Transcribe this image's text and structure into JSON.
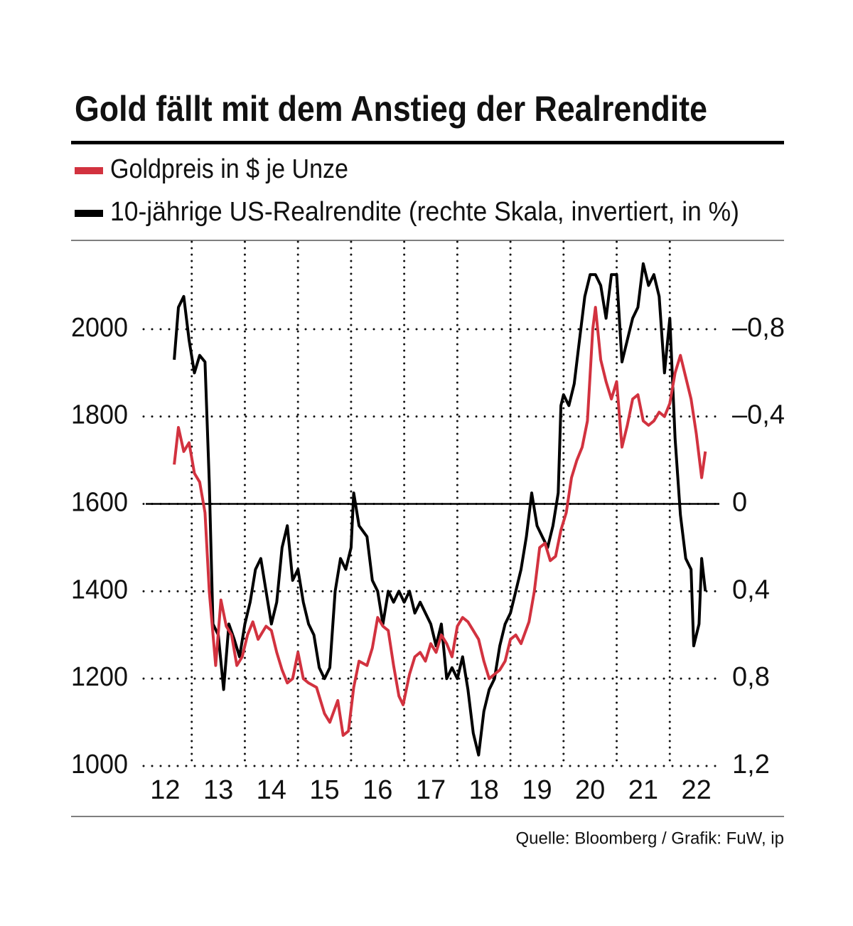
{
  "chart_data": {
    "type": "line",
    "title": "Gold fällt mit dem Anstieg der Realrendite",
    "source": "Quelle: Bloomberg / Grafik: FuW, ip",
    "xlim": [
      12,
      23
    ],
    "xticks": [
      {
        "value": 12.5,
        "label": "12"
      },
      {
        "value": 13.5,
        "label": "13"
      },
      {
        "value": 14.5,
        "label": "14"
      },
      {
        "value": 15.5,
        "label": "15"
      },
      {
        "value": 16.5,
        "label": "16"
      },
      {
        "value": 17.5,
        "label": "17"
      },
      {
        "value": 18.5,
        "label": "18"
      },
      {
        "value": 19.5,
        "label": "19"
      },
      {
        "value": 20.5,
        "label": "20"
      },
      {
        "value": 21.5,
        "label": "21"
      },
      {
        "value": 22.5,
        "label": "22"
      }
    ],
    "xgrid": [
      13,
      14,
      15,
      16,
      17,
      18,
      19,
      20,
      21,
      22
    ],
    "ylim": [
      1000,
      2200
    ],
    "yticks": [
      1000,
      1200,
      1400,
      1600,
      1800,
      2000
    ],
    "y2lim": [
      1.2,
      -1.2
    ],
    "y2ticks": [
      {
        "value": 1.2,
        "label": "1,2"
      },
      {
        "value": 0.8,
        "label": "0,8"
      },
      {
        "value": 0.4,
        "label": "0,4"
      },
      0,
      {
        "value": -0.4,
        "label": "–0,4"
      },
      {
        "value": -0.8,
        "label": "–0,8"
      }
    ],
    "grid": true,
    "series": [
      {
        "name": "Goldpreis in $ je Unze",
        "color": "#d2323f",
        "x": [
          12.67,
          12.75,
          12.85,
          12.95,
          13.05,
          13.15,
          13.25,
          13.33,
          13.45,
          13.55,
          13.65,
          13.75,
          13.85,
          13.95,
          14.05,
          14.15,
          14.25,
          14.4,
          14.5,
          14.6,
          14.7,
          14.8,
          14.9,
          15.0,
          15.1,
          15.2,
          15.35,
          15.5,
          15.6,
          15.75,
          15.85,
          15.95,
          16.05,
          16.15,
          16.3,
          16.4,
          16.5,
          16.6,
          16.7,
          16.8,
          16.9,
          16.98,
          17.1,
          17.2,
          17.3,
          17.4,
          17.5,
          17.6,
          17.7,
          17.8,
          17.9,
          18.0,
          18.1,
          18.2,
          18.3,
          18.4,
          18.5,
          18.6,
          18.7,
          18.8,
          18.9,
          19.0,
          19.1,
          19.2,
          19.35,
          19.45,
          19.55,
          19.65,
          19.75,
          19.85,
          19.95,
          20.05,
          20.15,
          20.25,
          20.35,
          20.45,
          20.55,
          20.6,
          20.7,
          20.8,
          20.9,
          21.0,
          21.1,
          21.2,
          21.3,
          21.4,
          21.5,
          21.6,
          21.7,
          21.8,
          21.9,
          22.0,
          22.1,
          22.2,
          22.3,
          22.4,
          22.5,
          22.6,
          22.67
        ],
        "values": [
          1690,
          1775,
          1720,
          1740,
          1670,
          1650,
          1580,
          1400,
          1230,
          1380,
          1320,
          1300,
          1230,
          1250,
          1300,
          1330,
          1290,
          1320,
          1310,
          1260,
          1220,
          1190,
          1200,
          1260,
          1200,
          1190,
          1180,
          1120,
          1100,
          1150,
          1070,
          1080,
          1180,
          1240,
          1230,
          1270,
          1340,
          1320,
          1310,
          1230,
          1160,
          1140,
          1210,
          1250,
          1260,
          1240,
          1280,
          1260,
          1300,
          1280,
          1250,
          1320,
          1340,
          1330,
          1310,
          1290,
          1240,
          1200,
          1210,
          1220,
          1240,
          1290,
          1300,
          1280,
          1330,
          1400,
          1500,
          1510,
          1470,
          1480,
          1540,
          1580,
          1660,
          1700,
          1730,
          1790,
          2000,
          2050,
          1930,
          1880,
          1840,
          1880,
          1730,
          1780,
          1840,
          1850,
          1790,
          1780,
          1790,
          1810,
          1800,
          1830,
          1900,
          1940,
          1890,
          1840,
          1760,
          1660,
          1720
        ]
      },
      {
        "name": "10-jährige US-Realrendite (rechte Skala, invertiert, in %)",
        "color": "#000000",
        "axis": "y2",
        "x": [
          12.67,
          12.75,
          12.85,
          12.95,
          13.05,
          13.15,
          13.25,
          13.33,
          13.4,
          13.5,
          13.6,
          13.7,
          13.8,
          13.9,
          14.0,
          14.1,
          14.2,
          14.3,
          14.4,
          14.5,
          14.6,
          14.7,
          14.8,
          14.9,
          15.0,
          15.1,
          15.2,
          15.3,
          15.4,
          15.5,
          15.6,
          15.7,
          15.8,
          15.9,
          16.0,
          16.05,
          16.15,
          16.3,
          16.4,
          16.5,
          16.6,
          16.7,
          16.8,
          16.9,
          17.0,
          17.1,
          17.2,
          17.3,
          17.4,
          17.5,
          17.6,
          17.7,
          17.8,
          17.9,
          18.0,
          18.1,
          18.2,
          18.3,
          18.4,
          18.5,
          18.6,
          18.7,
          18.8,
          18.9,
          19.0,
          19.1,
          19.2,
          19.3,
          19.4,
          19.5,
          19.6,
          19.7,
          19.8,
          19.9,
          19.95,
          20.0,
          20.1,
          20.2,
          20.3,
          20.4,
          20.5,
          20.6,
          20.7,
          20.8,
          20.9,
          21.0,
          21.1,
          21.2,
          21.3,
          21.4,
          21.5,
          21.6,
          21.7,
          21.8,
          21.9,
          22.0,
          22.1,
          22.2,
          22.3,
          22.4,
          22.45,
          22.55,
          22.6,
          22.67
        ],
        "values": [
          -0.66,
          -0.9,
          -0.95,
          -0.75,
          -0.6,
          -0.68,
          -0.65,
          -0.1,
          0.55,
          0.6,
          0.85,
          0.55,
          0.62,
          0.7,
          0.55,
          0.45,
          0.3,
          0.25,
          0.4,
          0.55,
          0.45,
          0.2,
          0.1,
          0.35,
          0.3,
          0.45,
          0.55,
          0.6,
          0.75,
          0.8,
          0.75,
          0.4,
          0.25,
          0.3,
          0.2,
          -0.05,
          0.1,
          0.15,
          0.35,
          0.4,
          0.55,
          0.4,
          0.45,
          0.4,
          0.45,
          0.4,
          0.5,
          0.45,
          0.5,
          0.55,
          0.65,
          0.55,
          0.8,
          0.75,
          0.8,
          0.7,
          0.85,
          1.05,
          1.15,
          0.95,
          0.85,
          0.8,
          0.65,
          0.55,
          0.5,
          0.4,
          0.3,
          0.15,
          -0.05,
          0.1,
          0.15,
          0.2,
          0.1,
          -0.05,
          -0.45,
          -0.5,
          -0.45,
          -0.55,
          -0.75,
          -0.95,
          -1.05,
          -1.05,
          -1.0,
          -0.85,
          -1.05,
          -1.05,
          -0.65,
          -0.75,
          -0.85,
          -0.9,
          -1.1,
          -1.0,
          -1.05,
          -0.95,
          -0.6,
          -0.85,
          -0.3,
          0.05,
          0.25,
          0.3,
          0.65,
          0.55,
          0.25,
          0.4
        ]
      }
    ]
  }
}
